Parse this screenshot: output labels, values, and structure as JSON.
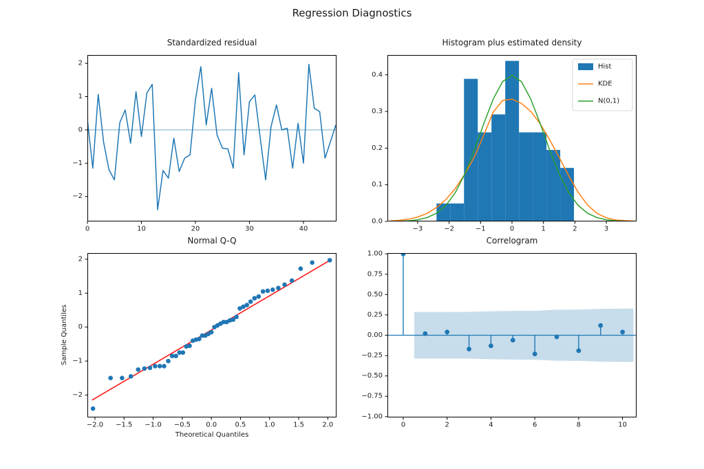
{
  "figure": {
    "suptitle": "Regression Diagnostics"
  },
  "colors": {
    "blue": "#1f77b4",
    "orange": "#ff7f0e",
    "green": "#2ca02c",
    "red": "#ff1a1a",
    "zero_line": "rgba(31,119,180,0.5)",
    "band": "rgba(31,119,180,0.25)",
    "spine": "#000000",
    "legend_border": "#cccccc"
  },
  "chart_data": [
    {
      "id": "residual",
      "type": "line",
      "title": "Standardized residual",
      "values": [
        0.3,
        -1.15,
        1.07,
        -0.37,
        -1.2,
        -1.5,
        0.22,
        0.6,
        -0.4,
        1.15,
        -0.2,
        1.1,
        1.37,
        -2.4,
        -1.22,
        -1.45,
        -0.25,
        -1.25,
        -0.85,
        -0.75,
        0.9,
        1.9,
        0.15,
        1.25,
        -0.15,
        -0.55,
        -0.57,
        -1.15,
        1.72,
        -0.75,
        0.85,
        1.05,
        -0.25,
        -1.5,
        0.1,
        0.75,
        0.0,
        0.05,
        -1.15,
        0.2,
        -1.0,
        1.97,
        0.65,
        0.55,
        -0.85,
        -0.35,
        0.15
      ],
      "zero_line": 0,
      "xlim": [
        0,
        46.12
      ],
      "ylim": [
        -2.75,
        2.25
      ],
      "xticks": [
        0,
        10,
        20,
        30,
        40
      ],
      "xtick_labels": [
        "0",
        "10",
        "20",
        "30",
        "40"
      ],
      "yticks": [
        -2,
        -1,
        0,
        1,
        2
      ],
      "ytick_labels": [
        "−2",
        "−1",
        "0",
        "1",
        "2"
      ]
    },
    {
      "id": "hist",
      "type": "histogram",
      "title": "Histogram plus estimated density",
      "bin_start": -2.4,
      "bin_width": 0.437,
      "densities": [
        0.049,
        0.049,
        0.389,
        0.243,
        0.292,
        0.438,
        0.243,
        0.243,
        0.195,
        0.146
      ],
      "series": [
        {
          "name": "KDE",
          "color_key": "orange",
          "points": [
            [
              -3.9,
              0.001
            ],
            [
              -3.6,
              0.003
            ],
            [
              -3.3,
              0.006
            ],
            [
              -3.0,
              0.012
            ],
            [
              -2.7,
              0.022
            ],
            [
              -2.4,
              0.038
            ],
            [
              -2.1,
              0.06
            ],
            [
              -1.8,
              0.09
            ],
            [
              -1.5,
              0.129
            ],
            [
              -1.2,
              0.175
            ],
            [
              -0.9,
              0.235
            ],
            [
              -0.6,
              0.298
            ],
            [
              -0.3,
              0.33
            ],
            [
              0.0,
              0.334
            ],
            [
              0.3,
              0.322
            ],
            [
              0.6,
              0.3
            ],
            [
              0.9,
              0.266
            ],
            [
              1.2,
              0.222
            ],
            [
              1.5,
              0.175
            ],
            [
              1.8,
              0.125
            ],
            [
              2.1,
              0.08
            ],
            [
              2.4,
              0.045
            ],
            [
              2.7,
              0.022
            ],
            [
              3.0,
              0.01
            ],
            [
              3.3,
              0.004
            ],
            [
              3.6,
              0.002
            ],
            [
              3.9,
              0.001
            ]
          ]
        },
        {
          "name": "N(0,1)",
          "color_key": "green",
          "points": [
            [
              -3.9,
              0.0002
            ],
            [
              -3.6,
              0.0006
            ],
            [
              -3.3,
              0.0017
            ],
            [
              -3.0,
              0.0044
            ],
            [
              -2.7,
              0.0104
            ],
            [
              -2.4,
              0.0224
            ],
            [
              -2.1,
              0.044
            ],
            [
              -1.8,
              0.079
            ],
            [
              -1.5,
              0.1295
            ],
            [
              -1.2,
              0.1942
            ],
            [
              -0.9,
              0.2661
            ],
            [
              -0.6,
              0.3332
            ],
            [
              -0.3,
              0.3814
            ],
            [
              0.0,
              0.3989
            ],
            [
              0.3,
              0.3814
            ],
            [
              0.6,
              0.3332
            ],
            [
              0.9,
              0.2661
            ],
            [
              1.2,
              0.1942
            ],
            [
              1.5,
              0.1295
            ],
            [
              1.8,
              0.079
            ],
            [
              2.1,
              0.044
            ],
            [
              2.4,
              0.0224
            ],
            [
              2.7,
              0.0104
            ],
            [
              3.0,
              0.0044
            ],
            [
              3.3,
              0.0017
            ],
            [
              3.6,
              0.0006
            ],
            [
              3.9,
              0.0002
            ]
          ]
        }
      ],
      "legend": {
        "items": [
          {
            "label": "Hist",
            "swatch": "patch",
            "color_key": "blue"
          },
          {
            "label": "KDE",
            "swatch": "line",
            "color_key": "orange"
          },
          {
            "label": "N(0,1)",
            "swatch": "line",
            "color_key": "green"
          }
        ]
      },
      "xlim": [
        -3.96,
        3.96
      ],
      "ylim": [
        0,
        0.454
      ],
      "xticks": [
        -3,
        -2,
        -1,
        0,
        1,
        2,
        3
      ],
      "xtick_labels": [
        "−3",
        "−2",
        "−1",
        "0",
        "1",
        "2",
        "3"
      ],
      "yticks": [
        0.0,
        0.1,
        0.2,
        0.3,
        0.4
      ],
      "ytick_labels": [
        "0.0",
        "0.1",
        "0.2",
        "0.3",
        "0.4"
      ]
    },
    {
      "id": "qq",
      "type": "scatter",
      "title": "Normal Q-Q",
      "xlabel": "Theoretical Quantiles",
      "ylabel": "Sample Quantiles",
      "theoretical": [
        -2.034,
        -1.732,
        -1.534,
        -1.383,
        -1.258,
        -1.15,
        -1.054,
        -0.967,
        -0.887,
        -0.812,
        -0.741,
        -0.674,
        -0.61,
        -0.549,
        -0.489,
        -0.431,
        -0.374,
        -0.319,
        -0.264,
        -0.21,
        -0.157,
        -0.105,
        -0.052,
        0.0,
        0.052,
        0.105,
        0.157,
        0.21,
        0.264,
        0.319,
        0.374,
        0.431,
        0.489,
        0.549,
        0.61,
        0.674,
        0.741,
        0.812,
        0.887,
        0.967,
        1.054,
        1.15,
        1.258,
        1.383,
        1.534,
        1.732,
        2.034
      ],
      "sample": [
        -2.4,
        -1.5,
        -1.5,
        -1.45,
        -1.25,
        -1.22,
        -1.2,
        -1.15,
        -1.15,
        -1.15,
        -1.0,
        -0.85,
        -0.85,
        -0.75,
        -0.75,
        -0.57,
        -0.55,
        -0.4,
        -0.37,
        -0.35,
        -0.25,
        -0.25,
        -0.2,
        -0.15,
        0.0,
        0.05,
        0.1,
        0.15,
        0.15,
        0.2,
        0.22,
        0.3,
        0.55,
        0.6,
        0.65,
        0.75,
        0.85,
        0.9,
        1.05,
        1.07,
        1.1,
        1.15,
        1.25,
        1.37,
        1.72,
        1.9,
        1.97
      ],
      "fit_line": [
        [
          -2.05,
          -2.15
        ],
        [
          2.05,
          1.98
        ]
      ],
      "xlim": [
        -2.13,
        2.15
      ],
      "ylim": [
        -2.66,
        2.18
      ],
      "xticks": [
        -2.0,
        -1.5,
        -1.0,
        -0.5,
        0.0,
        0.5,
        1.0,
        1.5,
        2.0
      ],
      "xtick_labels": [
        "−2.0",
        "−1.5",
        "−1.0",
        "−0.5",
        "0.0",
        "0.5",
        "1.0",
        "1.5",
        "2.0"
      ],
      "yticks": [
        -2,
        -1,
        0,
        1,
        2
      ],
      "ytick_labels": [
        "−2",
        "−1",
        "0",
        "1",
        "2"
      ]
    },
    {
      "id": "acf",
      "type": "stem",
      "title": "Correlogram",
      "lags": [
        0,
        1,
        2,
        3,
        4,
        5,
        6,
        7,
        8,
        9,
        10
      ],
      "values": [
        1.0,
        0.02,
        0.04,
        -0.17,
        -0.13,
        -0.06,
        -0.23,
        -0.02,
        -0.19,
        0.12,
        0.04
      ],
      "conf_band": {
        "x": [
          0.5,
          1,
          2,
          3,
          4,
          5,
          6,
          7,
          8,
          9,
          10,
          10.5
        ],
        "upper": [
          0.286,
          0.286,
          0.286,
          0.287,
          0.295,
          0.299,
          0.3,
          0.314,
          0.315,
          0.324,
          0.327,
          0.327
        ]
      },
      "xlim": [
        -0.72,
        10.64
      ],
      "ylim": [
        -1.01,
        1.01
      ],
      "xticks": [
        0,
        2,
        4,
        6,
        8,
        10
      ],
      "xtick_labels": [
        "0",
        "2",
        "4",
        "6",
        "8",
        "10"
      ],
      "yticks": [
        -1.0,
        -0.75,
        -0.5,
        -0.25,
        0.0,
        0.25,
        0.5,
        0.75,
        1.0
      ],
      "ytick_labels": [
        "−1.00",
        "−0.75",
        "−0.50",
        "−0.25",
        "0.00",
        "0.25",
        "0.50",
        "0.75",
        "1.00"
      ]
    }
  ]
}
